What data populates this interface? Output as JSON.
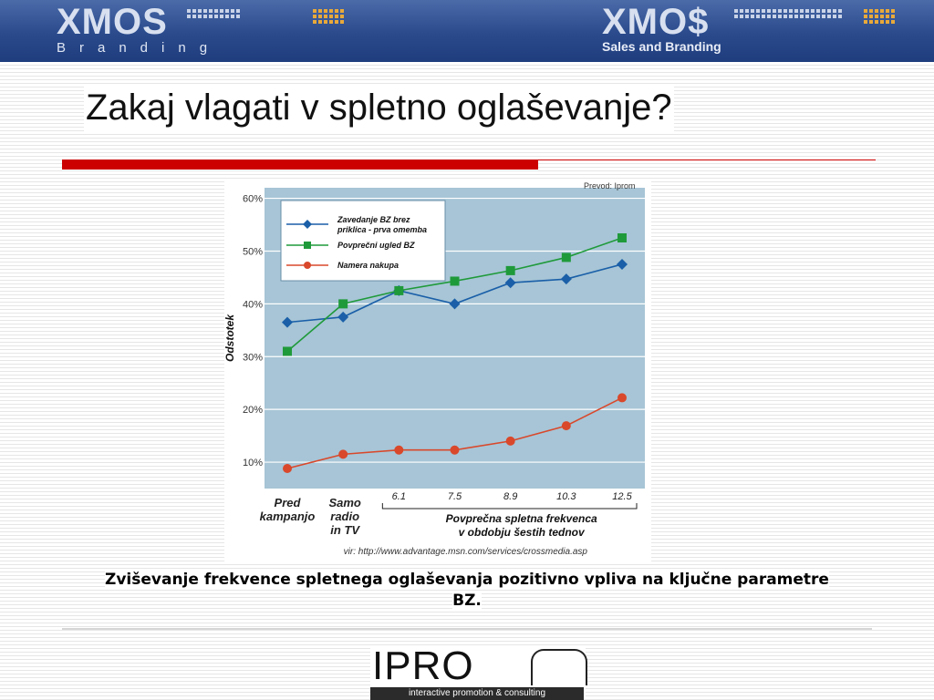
{
  "header": {
    "left_logo": "XMOS",
    "left_sub": "Branding",
    "right_logo": "XMO$",
    "right_sub": "Sales and Branding"
  },
  "slide": {
    "title": "Zakaj vlagati v spletno oglaševanje?",
    "caption": "Zviševanje frekvence spletnega oglaševanja pozitivno vpliva na ključne parametre BZ."
  },
  "footer": {
    "logo": "IPRO",
    "tagline": "interactive promotion & consulting"
  },
  "colors": {
    "banner": "#2a4a8c",
    "accent_red": "#cc0000",
    "plot_bg": "#a7c5d6",
    "series_blue": "#1a5fa8",
    "series_green": "#1f9a3a",
    "series_red": "#d9482b"
  },
  "chart_data": {
    "type": "line",
    "credit": "Prevod: Iprom",
    "source": "vir: http://www.advantage.msn.com/services/crossmedia.asp",
    "ylabel": "Odstotek",
    "xlabel_group": [
      "Povprečna spletna frekvenca",
      "v obdobju šestih tednov"
    ],
    "ylim": [
      5,
      62
    ],
    "yticks": [
      10,
      20,
      30,
      40,
      50,
      60
    ],
    "ytick_labels": [
      "10%",
      "20%",
      "30%",
      "40%",
      "50%",
      "60%"
    ],
    "categories": [
      [
        "Pred",
        "kampanjo"
      ],
      [
        "Samo",
        "radio",
        "in TV"
      ],
      [
        "6.1"
      ],
      [
        "7.5"
      ],
      [
        "8.9"
      ],
      [
        "10.3"
      ],
      [
        "12.5"
      ]
    ],
    "series": [
      {
        "name": [
          "Zavedanje BZ brez",
          "priklica - prva omemba"
        ],
        "marker": "diamond",
        "color": "#1a5fa8",
        "values": [
          36.5,
          37.5,
          42.5,
          40,
          44,
          44.7,
          47.5
        ]
      },
      {
        "name": [
          "Povprečni ugled BZ"
        ],
        "marker": "square",
        "color": "#1f9a3a",
        "values": [
          31,
          40,
          42.5,
          44.3,
          46.3,
          48.8,
          52.5
        ]
      },
      {
        "name": [
          "Namera nakupa"
        ],
        "marker": "circle",
        "color": "#d9482b",
        "values": [
          8.8,
          11.5,
          12.3,
          12.3,
          14,
          16.9,
          22.2
        ]
      }
    ]
  }
}
